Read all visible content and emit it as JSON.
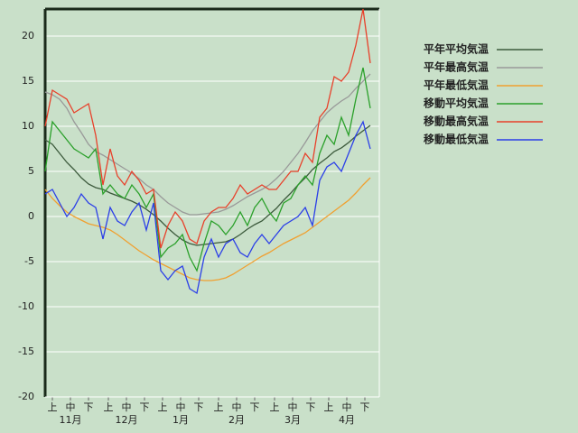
{
  "chart_data": {
    "type": "line",
    "x": [
      0,
      4,
      8,
      12,
      16,
      20,
      24,
      28,
      32,
      36,
      40,
      44,
      48,
      52,
      56,
      60,
      64,
      68,
      72,
      76,
      80,
      84,
      88,
      92,
      96,
      100,
      104,
      108,
      112,
      116,
      120,
      124,
      128,
      132,
      136,
      140,
      144,
      148,
      152,
      156,
      160,
      164,
      168,
      172,
      176,
      180
    ],
    "xlim": [
      0,
      185
    ],
    "xticks": [
      {
        "value": 4,
        "label": "上"
      },
      {
        "value": 14,
        "label": "中"
      },
      {
        "value": 24,
        "label": "下"
      },
      {
        "value": 35,
        "label": "上"
      },
      {
        "value": 45,
        "label": "中"
      },
      {
        "value": 55,
        "label": "下"
      },
      {
        "value": 65,
        "label": "上"
      },
      {
        "value": 75,
        "label": "中"
      },
      {
        "value": 85,
        "label": "下"
      },
      {
        "value": 96,
        "label": "上"
      },
      {
        "value": 106,
        "label": "中"
      },
      {
        "value": 116,
        "label": "下"
      },
      {
        "value": 127,
        "label": "上"
      },
      {
        "value": 137,
        "label": "中"
      },
      {
        "value": 147,
        "label": "下"
      },
      {
        "value": 157,
        "label": "上"
      },
      {
        "value": 167,
        "label": "中"
      },
      {
        "value": 177,
        "label": "下"
      }
    ],
    "x_group_labels": [
      {
        "value": 14,
        "label": "11月"
      },
      {
        "value": 45,
        "label": "12月"
      },
      {
        "value": 75,
        "label": "1月"
      },
      {
        "value": 106,
        "label": "2月"
      },
      {
        "value": 137,
        "label": "3月"
      },
      {
        "value": 167,
        "label": "4月"
      }
    ],
    "ylim": [
      -20,
      23
    ],
    "yticks": [
      -20,
      -15,
      -10,
      -5,
      0,
      5,
      10,
      15,
      20
    ],
    "grid": true,
    "legend": "right",
    "series": [
      {
        "name": "平年平均気温",
        "color": "#3c5a3c",
        "values": [
          8.5,
          8,
          7,
          6,
          5.2,
          4.3,
          3.6,
          3.2,
          3,
          2.6,
          2.3,
          2,
          1.7,
          1.3,
          0.8,
          0.2,
          -0.5,
          -1.3,
          -2,
          -2.6,
          -3,
          -3.2,
          -3.1,
          -3,
          -2.9,
          -2.8,
          -2.5,
          -2,
          -1.4,
          -0.9,
          -0.5,
          0.2,
          0.9,
          1.8,
          2.6,
          3.5,
          4.3,
          5.2,
          5.9,
          6.5,
          7.2,
          7.6,
          8.2,
          8.9,
          9.5,
          10.1
        ]
      },
      {
        "name": "平年最高気温",
        "color": "#999999",
        "values": [
          13.8,
          13.5,
          13,
          12,
          10.5,
          9.3,
          8,
          7.2,
          6.8,
          6.3,
          5.8,
          5.3,
          4.8,
          4.2,
          3.5,
          3,
          2.2,
          1.5,
          1,
          0.5,
          0.2,
          0.2,
          0.3,
          0.4,
          0.5,
          0.8,
          1.2,
          1.7,
          2.2,
          2.6,
          3,
          3.5,
          4.2,
          5,
          6,
          7,
          8.2,
          9.5,
          10.5,
          11.5,
          12.2,
          12.8,
          13.3,
          14.2,
          15,
          15.8
        ]
      },
      {
        "name": "平年最低気温",
        "color": "#f0a030",
        "values": [
          3,
          2,
          1.2,
          0.5,
          0,
          -0.4,
          -0.8,
          -1,
          -1.2,
          -1.5,
          -2,
          -2.6,
          -3.2,
          -3.8,
          -4.3,
          -4.8,
          -5.2,
          -5.6,
          -6,
          -6.4,
          -6.8,
          -7,
          -7.1,
          -7.1,
          -7,
          -6.8,
          -6.4,
          -5.9,
          -5.4,
          -4.9,
          -4.4,
          -4,
          -3.5,
          -3,
          -2.6,
          -2.2,
          -1.8,
          -1.2,
          -0.6,
          0,
          0.6,
          1.2,
          1.8,
          2.6,
          3.5,
          4.3
        ]
      },
      {
        "name": "移動平均気温",
        "color": "#2aa02a",
        "values": [
          5,
          10.5,
          9.5,
          8.5,
          7.5,
          7,
          6.5,
          7.5,
          2.5,
          3.5,
          2.5,
          2,
          3.5,
          2.5,
          1,
          2.5,
          -4.5,
          -3.5,
          -3,
          -2,
          -4.5,
          -6,
          -3,
          -0.5,
          -1,
          -2,
          -1,
          0.5,
          -1,
          1,
          2,
          0.5,
          -0.5,
          1.5,
          2,
          3.5,
          4.5,
          3.5,
          7,
          9,
          8,
          11,
          9,
          13,
          16.5,
          12
        ]
      },
      {
        "name": "移動最高気温",
        "color": "#e8402a",
        "values": [
          10,
          14,
          13.5,
          13,
          11.5,
          12,
          12.5,
          9,
          3.5,
          7.5,
          4.5,
          3.5,
          5,
          4,
          2.5,
          3,
          -3.5,
          -1,
          0.5,
          -0.5,
          -2.5,
          -3,
          -0.5,
          0.5,
          1,
          1,
          2,
          3.5,
          2.5,
          3,
          3.5,
          3,
          3,
          4,
          5,
          5,
          7,
          6,
          11,
          12,
          15.5,
          15,
          16,
          19,
          23,
          17
        ]
      },
      {
        "name": "移動最低気温",
        "color": "#2a3ee8",
        "values": [
          2.5,
          3,
          1.5,
          0,
          1,
          2.5,
          1.5,
          1,
          -2.5,
          1,
          -0.5,
          -1,
          0.5,
          1.5,
          -1.5,
          1.5,
          -6,
          -7,
          -6,
          -5.5,
          -8,
          -8.5,
          -4.5,
          -2.5,
          -4.5,
          -3,
          -2.5,
          -4,
          -4.5,
          -3,
          -2,
          -3,
          -2,
          -1,
          -0.5,
          0,
          1,
          -1,
          4,
          5.5,
          6,
          5,
          7,
          9,
          10.5,
          7.5
        ]
      }
    ]
  }
}
